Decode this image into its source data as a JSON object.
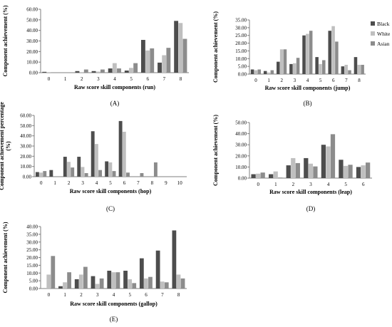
{
  "legend": [
    {
      "name": "Black",
      "color": "#4d4d4d"
    },
    {
      "name": "White",
      "color": "#bfbfbf"
    },
    {
      "name": "Asian",
      "color": "#8c8c8c"
    }
  ],
  "chart_data": [
    {
      "id": "A",
      "type": "bar",
      "panel_label": "(A)",
      "xlabel": "Raw score skill components (run)",
      "ylabel": "Component achievement (%)",
      "ylim": [
        0,
        60
      ],
      "yticks": [
        "0.00",
        "10.00",
        "20.00",
        "30.00",
        "40.00",
        "50.00",
        "60.00"
      ],
      "categories": [
        "0",
        "1",
        "2",
        "3",
        "4",
        "5",
        "6",
        "7",
        "8"
      ],
      "series": [
        {
          "name": "Black",
          "values": [
            0.8,
            0,
            1.5,
            1.5,
            4,
            2,
            31,
            9.5,
            49
          ]
        },
        {
          "name": "White",
          "values": [
            0.5,
            0,
            0.5,
            1,
            9,
            4.5,
            21,
            16.5,
            47
          ]
        },
        {
          "name": "Asian",
          "values": [
            0,
            0,
            3,
            3,
            4,
            9,
            23,
            23.5,
            32
          ]
        }
      ]
    },
    {
      "id": "B",
      "type": "bar",
      "panel_label": "(B)",
      "xlabel": "Raw score skill components (jump)",
      "ylabel": "Component achievement (%)",
      "ylim": [
        0,
        35
      ],
      "yticks": [
        "0.00",
        "5.00",
        "10.00",
        "15.00",
        "20.00",
        "25.00",
        "30.00",
        "35.00"
      ],
      "categories": [
        "0",
        "1",
        "2",
        "3",
        "4",
        "5",
        "6",
        "7",
        "8"
      ],
      "series": [
        {
          "name": "Black",
          "values": [
            3,
            2,
            8,
            6.5,
            25,
            11,
            28,
            5,
            11
          ]
        },
        {
          "name": "White",
          "values": [
            2.5,
            1,
            16,
            7,
            26,
            6.5,
            31,
            6,
            6
          ]
        },
        {
          "name": "Asian",
          "values": [
            3,
            2.5,
            16,
            10.5,
            28,
            9,
            21,
            2.5,
            6
          ]
        }
      ]
    },
    {
      "id": "C",
      "type": "bar",
      "panel_label": "(C)",
      "xlabel": "Raw score skill components (hop)",
      "ylabel": "Component achievement percentage (%)",
      "ylim": [
        0,
        60
      ],
      "yticks": [
        "0.00",
        "10.00",
        "20.00",
        "30.00",
        "40.00",
        "50.00",
        "60.00"
      ],
      "categories": [
        "0",
        "1",
        "2",
        "3",
        "4",
        "5",
        "6",
        "7",
        "8",
        "9",
        "10"
      ],
      "series": [
        {
          "name": "Black",
          "values": [
            4.5,
            6.5,
            19.5,
            19.5,
            44.5,
            15,
            54.5,
            0,
            0,
            0,
            0
          ]
        },
        {
          "name": "White",
          "values": [
            4,
            0,
            14.5,
            9.5,
            32,
            14,
            44,
            0,
            0,
            0,
            0
          ]
        },
        {
          "name": "Asian",
          "values": [
            5.5,
            0,
            9,
            3.5,
            6.5,
            5.5,
            4,
            3.5,
            14,
            0,
            0
          ]
        }
      ]
    },
    {
      "id": "D",
      "type": "bar",
      "panel_label": "(D)",
      "xlabel": "Raw score skill components (leap)",
      "ylabel": "Component achievement (%)",
      "ylim": [
        0,
        50
      ],
      "yticks": [
        "0.00",
        "10.00",
        "20.00",
        "30.00",
        "40.00",
        "50.00"
      ],
      "categories": [
        "0",
        "1",
        "2",
        "3",
        "4",
        "5",
        "6"
      ],
      "series": [
        {
          "name": "Black",
          "values": [
            3.5,
            3.5,
            11.5,
            18,
            30,
            16.5,
            10
          ]
        },
        {
          "name": "White",
          "values": [
            4,
            6,
            18,
            13,
            28.5,
            11,
            11.5
          ]
        },
        {
          "name": "Asian",
          "values": [
            5,
            0.5,
            13.5,
            10.5,
            39.5,
            12,
            14
          ]
        }
      ]
    },
    {
      "id": "E",
      "type": "bar",
      "panel_label": "(E)",
      "xlabel": "Raw score  skill components (gallop)",
      "ylabel": "Component achievement (%)",
      "ylim": [
        0,
        40
      ],
      "yticks": [
        "0.00",
        "5.00",
        "10.00",
        "15.00",
        "20.00",
        "25.00",
        "30.00",
        "35.00",
        "40.00"
      ],
      "categories": [
        "0",
        "1",
        "2",
        "3",
        "4",
        "5",
        "6",
        "7",
        "8"
      ],
      "series": [
        {
          "name": "Black",
          "values": [
            0,
            1.5,
            6,
            8,
            11.5,
            11.5,
            19.5,
            24.5,
            37.5
          ]
        },
        {
          "name": "White",
          "values": [
            9,
            4,
            9,
            3,
            10.5,
            6,
            6.5,
            4.5,
            9
          ]
        },
        {
          "name": "Asian",
          "values": [
            21,
            10.5,
            14,
            6.5,
            10.5,
            3.5,
            7.5,
            4,
            6.5
          ]
        }
      ]
    }
  ]
}
